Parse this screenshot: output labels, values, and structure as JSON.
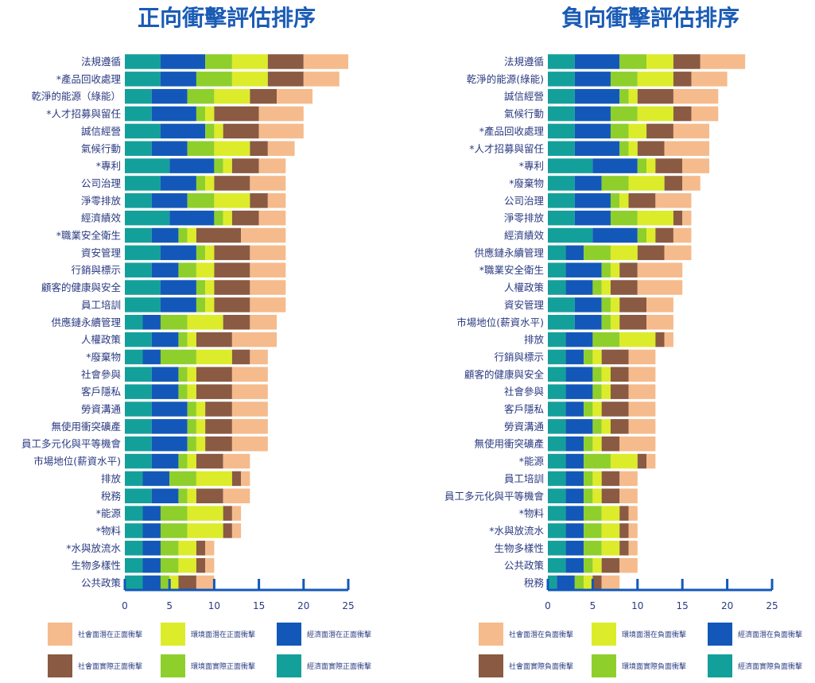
{
  "colors": {
    "econ_actual": "#14a09a",
    "econ_potential": "#1358b8",
    "env_actual": "#8ecf2c",
    "env_potential": "#dcec2a",
    "soc_actual": "#8a5a42",
    "soc_potential": "#f5bb8c",
    "axis": "#1358b8"
  },
  "chart_data": [
    {
      "type": "bar",
      "orientation": "horizontal",
      "stacked": true,
      "title": "正向衝擊評估排序",
      "xlim": [
        0,
        25
      ],
      "xticks": [
        0,
        5,
        10,
        15,
        20,
        25
      ],
      "legend_position": "bottom",
      "categories": [
        "法規遵循",
        "*產品回收處理",
        "乾淨的能源（綠能）",
        "*人才招募與留任",
        "誠信經營",
        "氣候行動",
        "*專利",
        "公司治理",
        "淨零排放",
        "經濟績效",
        "*職業安全衛生",
        "資安管理",
        "行銷與標示",
        "顧客的健康與安全",
        "員工培訓",
        "供應鏈永續管理",
        "人權政策",
        "*廢棄物",
        "社會參與",
        "客戶隱私",
        "勞資溝通",
        "無使用衝突礦產",
        "員工多元化與平等機會",
        "市場地位(薪資水平)",
        "排放",
        "稅務",
        "*能源",
        "*物料",
        "*水與放流水",
        "生物多樣性",
        "公共政策"
      ],
      "series": [
        {
          "name": "經濟面實際正面衝擊",
          "color_key": "econ_actual",
          "values": [
            4,
            4,
            3,
            3,
            4,
            3,
            5,
            4,
            3,
            5,
            3,
            4,
            3,
            4,
            4,
            2,
            3,
            2,
            3,
            3,
            3,
            3,
            3,
            3,
            2,
            3,
            2,
            2,
            2,
            2,
            2
          ]
        },
        {
          "name": "經濟面潛在正面衝擊",
          "color_key": "econ_potential",
          "values": [
            5,
            4,
            4,
            5,
            5,
            4,
            5,
            4,
            4,
            5,
            3,
            4,
            3,
            4,
            4,
            2,
            3,
            2,
            3,
            3,
            4,
            4,
            4,
            3,
            3,
            3,
            2,
            2,
            2,
            2,
            2
          ]
        },
        {
          "name": "環境面實際正面衝擊",
          "color_key": "env_actual",
          "values": [
            3,
            4,
            3,
            1,
            1,
            3,
            1,
            1,
            3,
            1,
            1,
            1,
            2,
            1,
            1,
            3,
            1,
            4,
            1,
            1,
            1,
            1,
            1,
            1,
            3,
            1,
            3,
            3,
            2,
            2,
            1
          ]
        },
        {
          "name": "環境面潛在正面衝擊",
          "color_key": "env_potential",
          "values": [
            4,
            4,
            4,
            1,
            1,
            4,
            1,
            1,
            4,
            1,
            1,
            1,
            2,
            1,
            1,
            4,
            1,
            4,
            1,
            1,
            1,
            1,
            1,
            1,
            4,
            1,
            4,
            4,
            2,
            2,
            1
          ]
        },
        {
          "name": "社會面實際正面衝擊",
          "color_key": "soc_actual",
          "values": [
            4,
            4,
            3,
            5,
            4,
            2,
            3,
            4,
            2,
            3,
            5,
            4,
            4,
            4,
            4,
            3,
            4,
            2,
            4,
            4,
            3,
            3,
            3,
            3,
            1,
            3,
            1,
            1,
            1,
            1,
            2
          ]
        },
        {
          "name": "社會面潛在正面衝擊",
          "color_key": "soc_potential",
          "values": [
            5,
            4,
            4,
            5,
            5,
            3,
            3,
            4,
            2,
            3,
            5,
            4,
            4,
            4,
            4,
            3,
            5,
            2,
            4,
            4,
            4,
            4,
            4,
            3,
            1,
            3,
            1,
            1,
            1,
            1,
            2
          ]
        }
      ]
    },
    {
      "type": "bar",
      "orientation": "horizontal",
      "stacked": true,
      "title": "負向衝擊評估排序",
      "xlim": [
        0,
        25
      ],
      "xticks": [
        0,
        5,
        10,
        15,
        20,
        25
      ],
      "legend_position": "bottom",
      "categories": [
        "法規遵循",
        "乾淨的能源(綠能)",
        "誠信經營",
        "氣候行動",
        "*產品回收處理",
        "*人才招募與留任",
        "*專利",
        "*廢棄物",
        "公司治理",
        "淨零排放",
        "經濟績效",
        "供應鏈永續管理",
        "*職業安全衛生",
        "人權政策",
        "資安管理",
        "市場地位(薪資水平)",
        "排放",
        "行銷與標示",
        "顧客的健康與安全",
        "社會參與",
        "客戶隱私",
        "勞資溝通",
        "無使用衝突礦產",
        "*能源",
        "員工培訓",
        "員工多元化與平等機會",
        "*物料",
        "*水與放流水",
        "生物多樣性",
        "公共政策",
        "稅務"
      ],
      "series": [
        {
          "name": "經濟面實際負面衝擊",
          "color_key": "econ_actual",
          "values": [
            3,
            3,
            3,
            3,
            3,
            3,
            5,
            3,
            3,
            3,
            5,
            2,
            2,
            2,
            3,
            3,
            2,
            2,
            2,
            2,
            2,
            2,
            2,
            2,
            2,
            2,
            2,
            2,
            2,
            2,
            1
          ]
        },
        {
          "name": "經濟面潛在負面衝擊",
          "color_key": "econ_potential",
          "values": [
            5,
            4,
            5,
            4,
            4,
            5,
            5,
            3,
            4,
            4,
            5,
            2,
            4,
            3,
            3,
            3,
            3,
            2,
            3,
            3,
            2,
            3,
            2,
            2,
            2,
            2,
            2,
            2,
            2,
            2,
            2
          ]
        },
        {
          "name": "環境面實際負面衝擊",
          "color_key": "env_actual",
          "values": [
            3,
            3,
            1,
            3,
            2,
            1,
            1,
            3,
            1,
            3,
            1,
            3,
            1,
            1,
            1,
            1,
            3,
            1,
            1,
            1,
            1,
            1,
            1,
            3,
            1,
            1,
            2,
            2,
            2,
            1,
            1
          ]
        },
        {
          "name": "環境面潛在負面衝擊",
          "color_key": "env_potential",
          "values": [
            3,
            4,
            1,
            4,
            2,
            1,
            1,
            4,
            1,
            4,
            1,
            3,
            1,
            1,
            1,
            1,
            4,
            1,
            1,
            1,
            1,
            1,
            1,
            3,
            1,
            1,
            2,
            2,
            2,
            1,
            1
          ]
        },
        {
          "name": "社會面實際負面衝擊",
          "color_key": "soc_actual",
          "values": [
            3,
            2,
            4,
            2,
            3,
            3,
            3,
            2,
            3,
            1,
            2,
            3,
            2,
            3,
            3,
            3,
            1,
            3,
            2,
            2,
            3,
            2,
            2,
            1,
            2,
            2,
            1,
            1,
            1,
            2,
            1
          ]
        },
        {
          "name": "社會面潛在負面衝擊",
          "color_key": "soc_potential",
          "values": [
            5,
            4,
            5,
            3,
            4,
            5,
            3,
            2,
            4,
            1,
            2,
            3,
            5,
            5,
            3,
            3,
            1,
            3,
            3,
            3,
            3,
            3,
            4,
            1,
            2,
            2,
            1,
            1,
            1,
            2,
            2
          ]
        }
      ]
    }
  ],
  "legends": [
    [
      {
        "label": "社會面潛在正面衝擊",
        "color_key": "soc_potential"
      },
      {
        "label": "環境面潛在正面衝擊",
        "color_key": "env_potential"
      },
      {
        "label": "經濟面潛在正面衝擊",
        "color_key": "econ_potential"
      },
      {
        "label": "社會面實際正面衝擊",
        "color_key": "soc_actual"
      },
      {
        "label": "環境面實際正面衝擊",
        "color_key": "env_actual"
      },
      {
        "label": "經濟面實際正面衝擊",
        "color_key": "econ_actual"
      }
    ],
    [
      {
        "label": "社會面潛在負面衝擊",
        "color_key": "soc_potential"
      },
      {
        "label": "環境面潛在負面衝擊",
        "color_key": "env_potential"
      },
      {
        "label": "經濟面潛在負面衝擊",
        "color_key": "econ_potential"
      },
      {
        "label": "社會面實際負面衝擊",
        "color_key": "soc_actual"
      },
      {
        "label": "環境面實際負面衝擊",
        "color_key": "env_actual"
      },
      {
        "label": "經濟面實際負面衝擊",
        "color_key": "econ_actual"
      }
    ]
  ]
}
